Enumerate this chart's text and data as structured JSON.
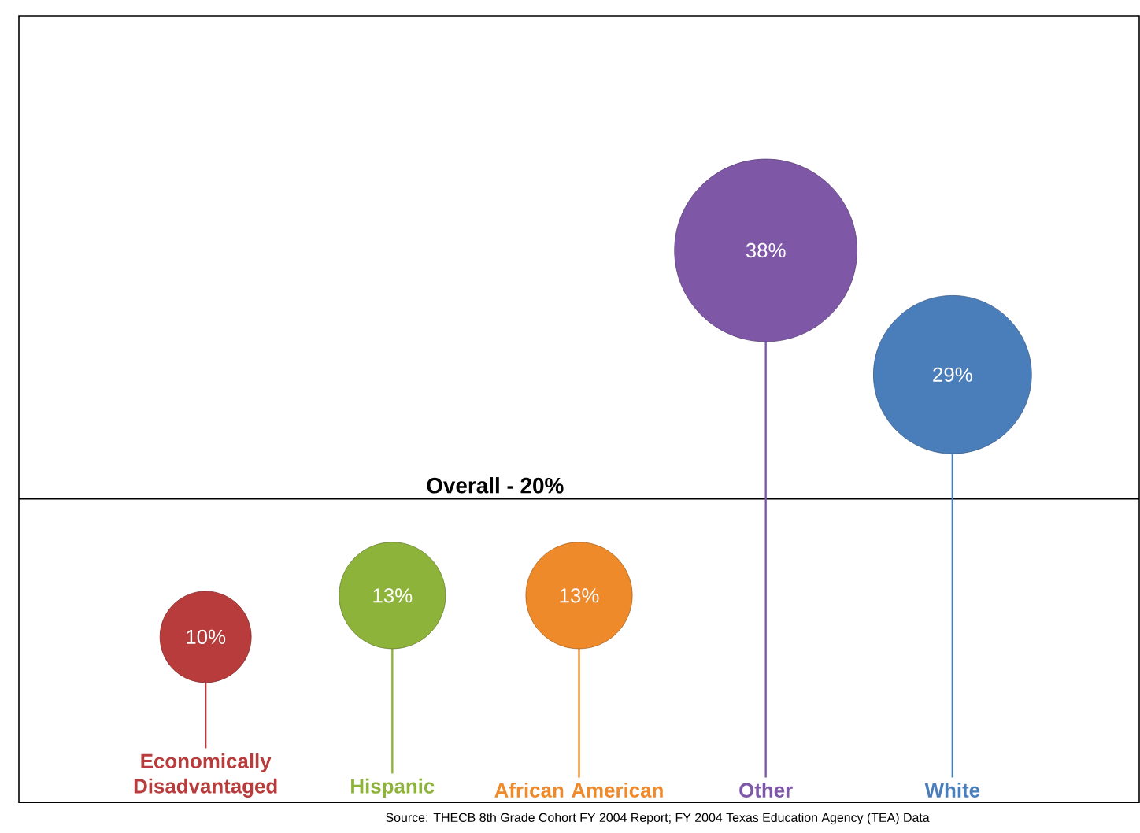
{
  "chart_data": {
    "type": "bubble",
    "categories": [
      "Economically Disadvantaged",
      "Hispanic",
      "African American",
      "Other",
      "White"
    ],
    "values": [
      10,
      13,
      13,
      38,
      29
    ],
    "sizes": [
      0.25,
      0.34,
      0.34,
      1,
      0.75
    ],
    "value_labels": [
      "10%",
      "13%",
      "13%",
      "38%",
      "29%"
    ],
    "colors": [
      "#b83c3c",
      "#8db33a",
      "#ee8a2a",
      "#7e57a6",
      "#4a7ebb"
    ],
    "ylim": [
      -2,
      55
    ],
    "ref_lines": [
      {
        "axis": "y",
        "value": 20,
        "label": "Overall - 20%",
        "color": "#000000"
      }
    ],
    "annotations": [
      "Source: THECB 8th Grade Cohort FY 2004 Report; FY 2004 Texas Education Agency (TEA) Data"
    ]
  }
}
